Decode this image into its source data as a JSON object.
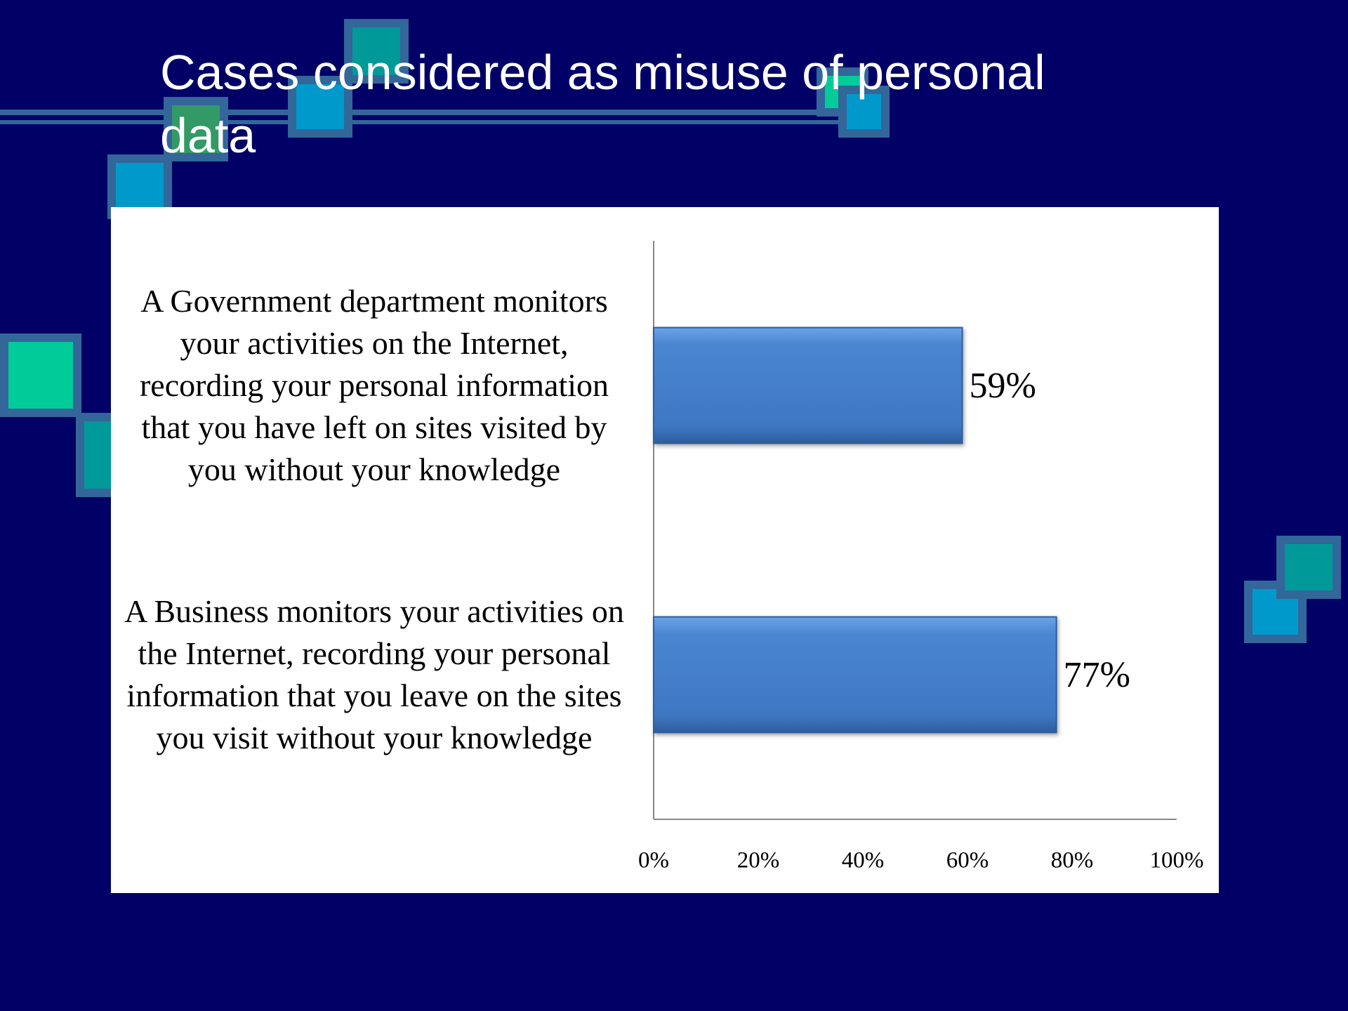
{
  "title": "Cases considered as misuse of personal data",
  "chart_data": {
    "type": "hbar",
    "categories": [
      "A Government department monitors your activities on the Internet, recording your personal information that you have left on sites visited by you without your knowledge",
      "A Business monitors your activities on the Internet, recording your personal information that you leave on the sites you visit without your knowledge"
    ],
    "values": [
      59,
      77
    ],
    "value_labels": [
      "59%",
      "77%"
    ],
    "color": "#4a86d0",
    "xlim": [
      0,
      100
    ],
    "xticks": [
      {
        "value": 0,
        "label": "0%"
      },
      {
        "value": 20,
        "label": "20%"
      },
      {
        "value": 40,
        "label": "40%"
      },
      {
        "value": 60,
        "label": "60%"
      },
      {
        "value": 80,
        "label": "80%"
      },
      {
        "value": 100,
        "label": "100%"
      }
    ]
  }
}
